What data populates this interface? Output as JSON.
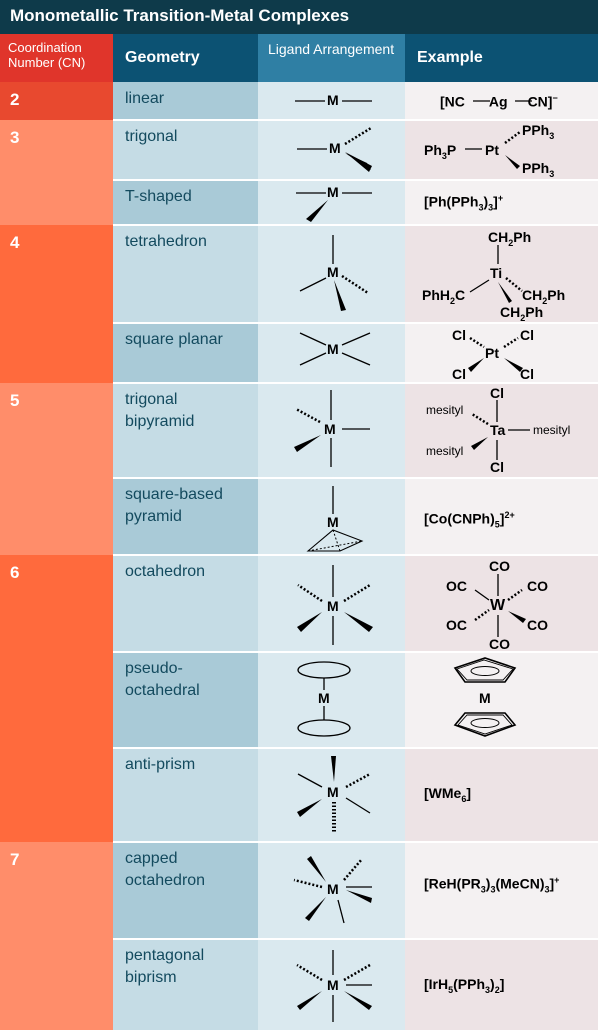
{
  "title": "Monometallic Transition-Metal Complexes",
  "headers": {
    "cn": "Coordination Number (CN)",
    "geometry": "Geometry",
    "ligand": "Ligand Arrangement",
    "example": "Example"
  },
  "colors": {
    "cn_dark": "#ff6a3d",
    "cn_light": "#ff8d6a",
    "cn_first": "#e8492f",
    "header": "#0c5273",
    "title_bar": "#0e3a4a"
  },
  "cn_groups": [
    "2",
    "3",
    "4",
    "5",
    "6",
    "7"
  ],
  "rows": [
    {
      "geometry": "linear",
      "example": "[NC—Ag—CN]⁻"
    },
    {
      "geometry": "trigonal",
      "example": "Ph₃P—Pt(PPh₃)₂"
    },
    {
      "geometry": "T-shaped",
      "example": "[Ph(PPh₃)₃]⁺"
    },
    {
      "geometry": "tetrahedron",
      "example": "Ti(CH₂Ph)₄"
    },
    {
      "geometry": "square planar",
      "example": "PtCl₄"
    },
    {
      "geometry": "trigonal bipyramid",
      "example": "Ta(mesityl)₃Cl₂"
    },
    {
      "geometry": "square-based pyramid",
      "example": "[Co(CNPh)₅]²⁺"
    },
    {
      "geometry": "octahedron",
      "example": "W(CO)₆"
    },
    {
      "geometry": "pseudo-octahedral",
      "example": "sandwich"
    },
    {
      "geometry": "anti-prism",
      "example": "[WMe₆]"
    },
    {
      "geometry": "capped octahedron",
      "example": "[ReH(PR₃)₃(MeCN)₃]⁺"
    },
    {
      "geometry": "pentagonal biprism",
      "example": "[IrH₅(PPh₃)₂]"
    }
  ],
  "labels": {
    "M": "M",
    "linear_ex": {
      "nc": "[NC",
      "ag": "Ag",
      "cn": "CN]",
      "chg": "−"
    },
    "trig_ex": {
      "ph3p": "Ph",
      "sub3": "3",
      "p": "P",
      "pt": "Pt",
      "pph": "PPh",
      "s3": "3"
    },
    "tshape_ex": {
      "a": "[Ph(PPh",
      "s3": "3",
      "b": ")",
      "s3b": "3",
      "c": "]",
      "chg": "+"
    },
    "tetra_ex": {
      "ch2ph": "CH",
      "s2": "2",
      "ph": "Ph",
      "phh": "PhH",
      "c": "C",
      "ti": "Ti"
    },
    "sq_ex": {
      "cl": "Cl",
      "pt": "Pt"
    },
    "tbp_ex": {
      "mes": "mesityl",
      "cl": "Cl",
      "ta": "Ta"
    },
    "sbp_ex": {
      "a": "[Co(CNPh)",
      "s5": "5",
      "b": "]",
      "chg": "2+"
    },
    "oct_ex": {
      "co": "CO",
      "oc": "OC",
      "w": "W"
    },
    "anti_ex": {
      "a": "[WMe",
      "s6": "6",
      "b": "]"
    },
    "capped_ex": {
      "a": "[ReH(PR",
      "s3": "3",
      "b": ")",
      "c": "(MeCN)",
      "d": "]",
      "chg": "+"
    },
    "pent_ex": {
      "a": "[IrH",
      "s5": "5",
      "b": "(PPh",
      "s3": "3",
      "c": ")",
      "s2": "2",
      "d": "]"
    }
  }
}
